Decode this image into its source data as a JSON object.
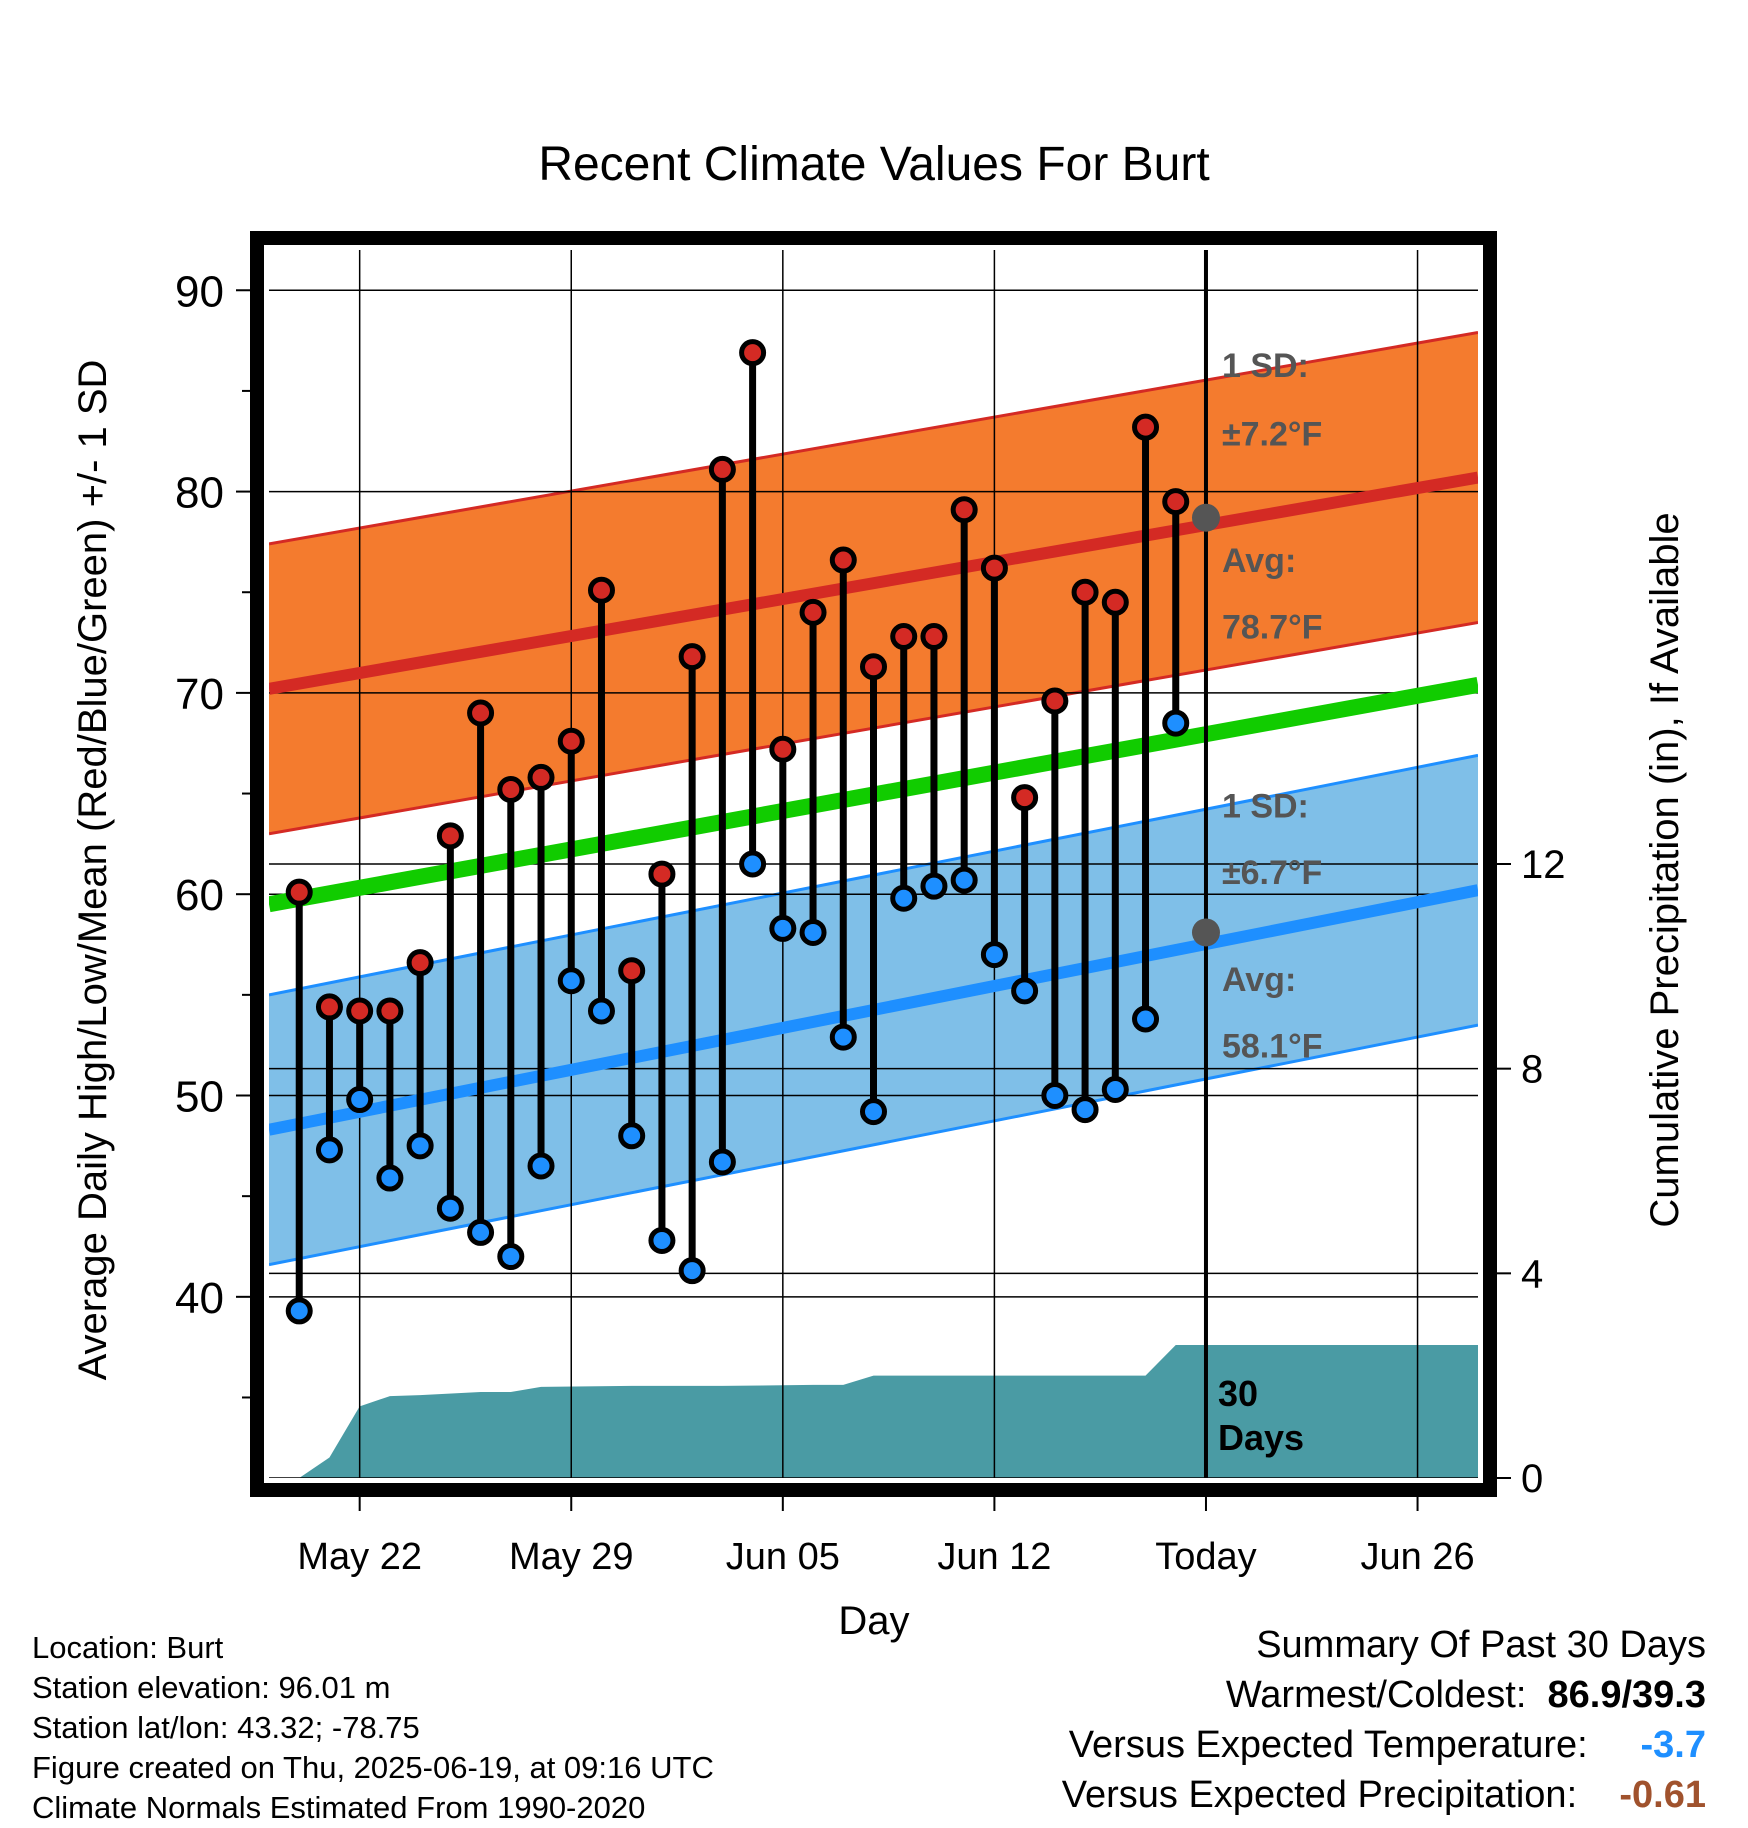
{
  "chart_data": {
    "type": "line",
    "title": "Recent Climate Values For Burt",
    "xlabel": "Day",
    "ylabel": "Average Daily High/Low/Mean (Red/Blue/Green) +/- 1 SD",
    "ylabel_right": "Cumulative Precipitation (in), If Available",
    "x_tick_labels": [
      "May 22",
      "May 29",
      "Jun 05",
      "Jun 12",
      "Today",
      "Jun 26"
    ],
    "x_tick_dates": [
      "2025-05-22",
      "2025-05-29",
      "2025-06-05",
      "2025-06-12",
      "2025-06-19",
      "2025-06-26"
    ],
    "x_range": [
      "2025-05-19",
      "2025-06-28"
    ],
    "y_ticks": [
      40,
      50,
      60,
      70,
      80,
      90
    ],
    "ylim": [
      31,
      92
    ],
    "y2_ticks": [
      0,
      4,
      8,
      12
    ],
    "y2lim": [
      0,
      24
    ],
    "grid": true,
    "today": "2025-06-19",
    "colors": {
      "high_band": "#f47b2e",
      "high_line": "#d42a24",
      "low_band": "#7fbfe8",
      "low_line": "#1e8fff",
      "mean_line": "#11cc00",
      "precip": "#4a9ba4",
      "high_marker": "#d42a24",
      "low_marker": "#1e8fff",
      "annotation": "#555555",
      "below_normal_temp": "#1e8fff",
      "below_normal_precip": "#a0522d"
    },
    "normals": {
      "dates": [
        "2025-05-19",
        "2025-06-28"
      ],
      "avg_high": [
        70.2,
        80.7
      ],
      "avg_low": [
        48.3,
        60.2
      ],
      "avg_mean": [
        59.5,
        70.4
      ],
      "high_sd": 7.2,
      "low_sd": 6.7
    },
    "series": [
      {
        "name": "High",
        "dates": [
          "2025-05-20",
          "2025-05-21",
          "2025-05-22",
          "2025-05-23",
          "2025-05-24",
          "2025-05-25",
          "2025-05-26",
          "2025-05-27",
          "2025-05-28",
          "2025-05-29",
          "2025-05-30",
          "2025-05-31",
          "2025-06-01",
          "2025-06-02",
          "2025-06-03",
          "2025-06-04",
          "2025-06-05",
          "2025-06-06",
          "2025-06-07",
          "2025-06-08",
          "2025-06-09",
          "2025-06-10",
          "2025-06-11",
          "2025-06-12",
          "2025-06-13",
          "2025-06-14",
          "2025-06-15",
          "2025-06-16",
          "2025-06-17",
          "2025-06-18"
        ],
        "values": [
          60.1,
          54.4,
          54.2,
          54.2,
          56.6,
          62.9,
          69.0,
          65.2,
          65.8,
          67.6,
          75.1,
          56.2,
          61.0,
          71.8,
          81.1,
          86.9,
          67.2,
          74.0,
          76.6,
          71.3,
          72.8,
          72.8,
          79.1,
          76.2,
          64.8,
          69.6,
          75.0,
          74.5,
          83.2,
          79.5
        ]
      },
      {
        "name": "Low",
        "dates": [
          "2025-05-20",
          "2025-05-21",
          "2025-05-22",
          "2025-05-23",
          "2025-05-24",
          "2025-05-25",
          "2025-05-26",
          "2025-05-27",
          "2025-05-28",
          "2025-05-29",
          "2025-05-30",
          "2025-05-31",
          "2025-06-01",
          "2025-06-02",
          "2025-06-03",
          "2025-06-04",
          "2025-06-05",
          "2025-06-06",
          "2025-06-07",
          "2025-06-08",
          "2025-06-09",
          "2025-06-10",
          "2025-06-11",
          "2025-06-12",
          "2025-06-13",
          "2025-06-14",
          "2025-06-15",
          "2025-06-16",
          "2025-06-17",
          "2025-06-18"
        ],
        "values": [
          39.3,
          47.3,
          49.8,
          45.9,
          47.5,
          44.4,
          43.2,
          42.0,
          46.5,
          55.7,
          54.2,
          48.0,
          42.8,
          41.3,
          46.7,
          61.5,
          58.3,
          58.1,
          52.9,
          49.2,
          59.8,
          60.4,
          60.7,
          57.0,
          55.2,
          50.0,
          49.3,
          50.3,
          53.8,
          68.5
        ]
      },
      {
        "name": "Cumulative Precipitation",
        "dates": [
          "2025-05-20",
          "2025-05-21",
          "2025-05-22",
          "2025-05-23",
          "2025-05-24",
          "2025-05-26",
          "2025-05-27",
          "2025-05-28",
          "2025-05-31",
          "2025-06-03",
          "2025-06-06",
          "2025-06-07",
          "2025-06-08",
          "2025-06-17",
          "2025-06-18",
          "2025-06-28"
        ],
        "values": [
          0.0,
          0.4,
          1.4,
          1.6,
          1.62,
          1.68,
          1.68,
          1.78,
          1.8,
          1.8,
          1.82,
          1.82,
          2.0,
          2.0,
          2.6,
          2.6
        ]
      }
    ],
    "annotations": {
      "high_sd_label": "1 SD:",
      "high_sd_value": "±7.2°F",
      "high_avg_label": "Avg:",
      "high_avg_value": "78.7°F",
      "high_avg_today": 78.7,
      "low_sd_label": "1 SD:",
      "low_sd_value": "±6.7°F",
      "low_avg_label": "Avg:",
      "low_avg_value": "58.1°F",
      "low_avg_today": 58.1,
      "precip_label_1": "30",
      "precip_label_2": "Days"
    }
  },
  "info": {
    "location": "Location: Burt",
    "elevation": "Station elevation: 96.01 m",
    "latlon": "Station lat/lon: 43.32; -78.75",
    "created": "Figure created on Thu, 2025-06-19, at 09:16 UTC",
    "normals": "Climate Normals Estimated From 1990-2020"
  },
  "summary": {
    "title": "Summary Of Past 30 Days",
    "warm_cold_label": "Warmest/Coldest:",
    "warm_cold_value": "86.9/39.3",
    "temp_label": "Versus Expected Temperature:",
    "temp_value": "-3.7",
    "precip_label": "Versus Expected Precipitation:",
    "precip_value": "-0.61"
  }
}
